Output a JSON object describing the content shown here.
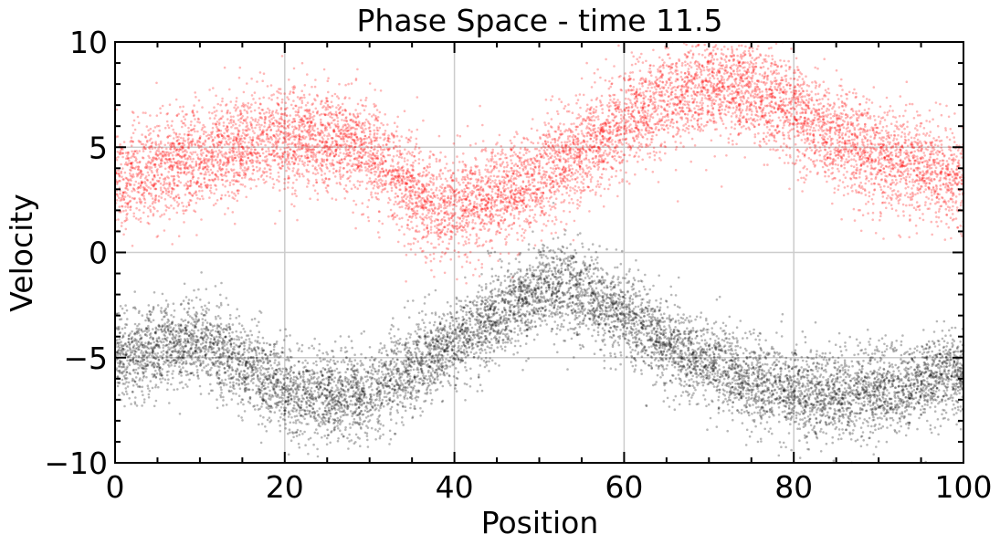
{
  "chart_data": {
    "type": "scatter",
    "title": "Phase Space - time 11.5",
    "xlabel": "Position",
    "ylabel": "Velocity",
    "xlim": [
      0,
      100
    ],
    "ylim": [
      -10,
      10
    ],
    "xticks": [
      0,
      20,
      40,
      60,
      80,
      100
    ],
    "xtick_labels": [
      "0",
      "20",
      "40",
      "60",
      "80",
      "100"
    ],
    "yticks": [
      -10,
      -5,
      0,
      5,
      10
    ],
    "ytick_labels": [
      "−10",
      "−5",
      "0",
      "5",
      "10"
    ],
    "grid": true,
    "legend": "none",
    "series": [
      {
        "color": "#ff0000",
        "point_count": 9000,
        "trend_x": [
          0,
          10,
          19,
          25,
          30,
          35,
          38,
          42,
          46,
          50,
          55,
          60,
          65,
          70,
          72,
          75,
          80,
          85,
          90,
          95,
          100
        ],
        "trend_y": [
          3.4,
          4.5,
          5.5,
          5.4,
          4.8,
          3.0,
          2.2,
          2.3,
          2.9,
          3.6,
          4.8,
          6.2,
          7.3,
          7.9,
          8.0,
          7.7,
          6.6,
          5.3,
          4.6,
          4.0,
          3.4
        ],
        "spread": 1.2
      },
      {
        "color": "#000000",
        "point_count": 9000,
        "trend_x": [
          0,
          5,
          10,
          15,
          20,
          25,
          30,
          35,
          40,
          45,
          50,
          53,
          55,
          60,
          65,
          70,
          75,
          80,
          85,
          90,
          95,
          100
        ],
        "trend_y": [
          -5.0,
          -4.6,
          -4.2,
          -5.2,
          -6.5,
          -7.0,
          -6.6,
          -5.6,
          -4.3,
          -3.0,
          -1.8,
          -1.6,
          -1.9,
          -3.0,
          -4.3,
          -5.3,
          -6.1,
          -6.7,
          -6.8,
          -6.6,
          -6.2,
          -5.6
        ],
        "spread": 1.05
      }
    ]
  }
}
